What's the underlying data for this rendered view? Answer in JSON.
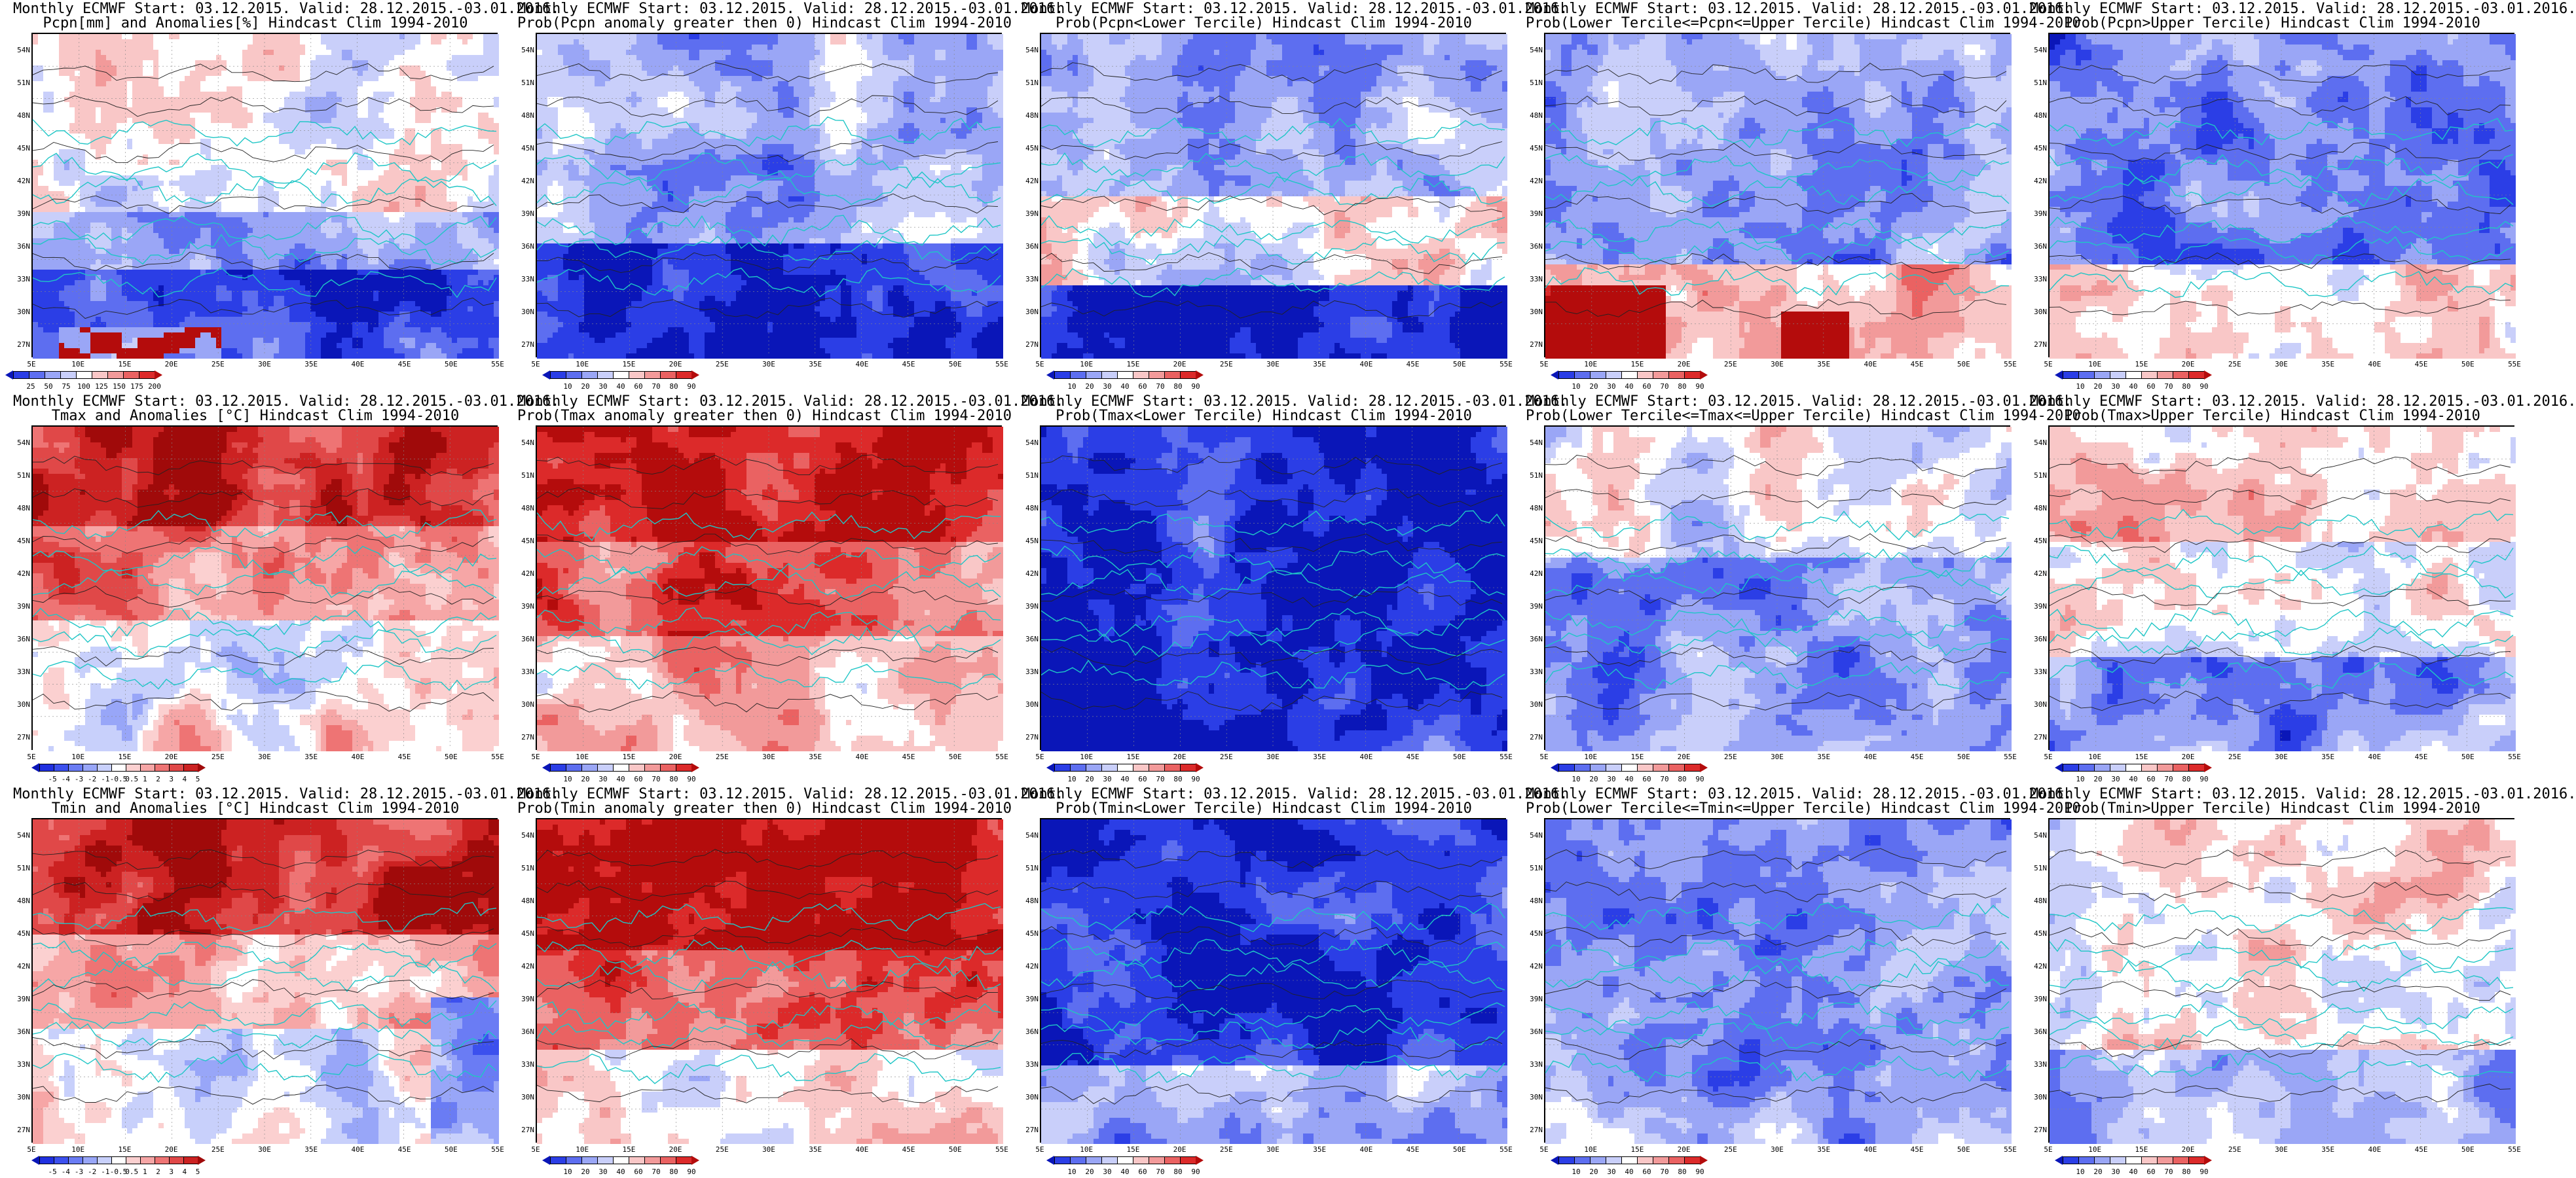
{
  "common": {
    "title_line1": "Monthly ECMWF Start: 03.12.2015. Valid: 28.12.2015.-03.01.2016.",
    "lat_labels": [
      "54N",
      "51N",
      "48N",
      "45N",
      "42N",
      "39N",
      "36N",
      "33N",
      "30N",
      "27N"
    ],
    "lon_labels": [
      "5E",
      "10E",
      "15E",
      "20E",
      "25E",
      "30E",
      "35E",
      "40E",
      "45E",
      "50E",
      "55E"
    ]
  },
  "scales": {
    "prob": [
      "10",
      "20",
      "30",
      "40",
      "60",
      "70",
      "80",
      "90"
    ],
    "pcpn": [
      "25",
      "50",
      "75",
      "100",
      "125",
      "150",
      "175",
      "200"
    ],
    "temp": [
      "-5",
      "-4",
      "-3",
      "-2",
      "-1",
      "-0.5",
      "0.5",
      "1",
      "2",
      "3",
      "4",
      "5"
    ],
    "prob_colors": [
      "#0a16b8",
      "#2b3ee6",
      "#5d6ef0",
      "#9aa6f6",
      "#c9cffa",
      "#ffffff",
      "#f9c7c7",
      "#f29a9a",
      "#ea6262",
      "#dc2a2a",
      "#b40c0c"
    ],
    "temp_colors": [
      "#0a16b8",
      "#2030e0",
      "#3c50ee",
      "#6a7cf4",
      "#98a6f8",
      "#c8d0fb",
      "#ffffff",
      "#fbd0d0",
      "#f6a6a6",
      "#ee7474",
      "#e04848",
      "#cc2222",
      "#a00a0a"
    ]
  },
  "panels": [
    {
      "title2": "Pcpn[mm] and Anomalies[%] Hindcast Clim 1994-2010",
      "scale": "pcpn",
      "field": "pcpn",
      "cbar_offset": "8"
    },
    {
      "title2": "Prob(Pcpn anomaly greater then 0) Hindcast Clim 1994-2010",
      "scale": "prob",
      "field": "pcpn_prob",
      "cbar_offset": "58"
    },
    {
      "title2": "Prob(Pcpn<Lower Tercile) Hindcast Clim 1994-2010",
      "scale": "prob",
      "field": "pcpn_low",
      "cbar_offset": "58"
    },
    {
      "title2": "Prob(Lower Tercile<=Pcpn<=Upper Tercile) Hindcast Clim 1994-2010",
      "scale": "prob",
      "field": "pcpn_mid",
      "cbar_offset": "58"
    },
    {
      "title2": "Prob(Pcpn>Upper Tercile) Hindcast Clim 1994-2010",
      "scale": "prob",
      "field": "pcpn_up",
      "cbar_offset": "58"
    },
    {
      "title2": "Tmax and Anomalies [°C] Hindcast Clim 1994-2010",
      "scale": "temp",
      "field": "tmax",
      "cbar_offset": "8"
    },
    {
      "title2": "Prob(Tmax anomaly greater then 0) Hindcast Clim 1994-2010",
      "scale": "prob",
      "field": "tmax_prob",
      "cbar_offset": "58"
    },
    {
      "title2": "Prob(Tmax<Lower Tercile) Hindcast Clim 1994-2010",
      "scale": "prob",
      "field": "tmax_low",
      "cbar_offset": "58"
    },
    {
      "title2": "Prob(Lower Tercile<=Tmax<=Upper Tercile) Hindcast Clim 1994-2010",
      "scale": "prob",
      "field": "tmax_mid",
      "cbar_offset": "58"
    },
    {
      "title2": "Prob(Tmax>Upper Tercile) Hindcast Clim 1994-2010",
      "scale": "prob",
      "field": "tmax_up",
      "cbar_offset": "58"
    },
    {
      "title2": "Tmin and Anomalies [°C] Hindcast Clim 1994-2010",
      "scale": "temp",
      "field": "tmin",
      "cbar_offset": "8"
    },
    {
      "title2": "Prob(Tmin anomaly greater then 0) Hindcast Clim 1994-2010",
      "scale": "prob",
      "field": "tmin_prob",
      "cbar_offset": "58"
    },
    {
      "title2": "Prob(Tmin<Lower Tercile) Hindcast Clim 1994-2010",
      "scale": "prob",
      "field": "tmin_low",
      "cbar_offset": "58"
    },
    {
      "title2": "Prob(Lower Tercile<=Tmin<=Upper Tercile) Hindcast Clim 1994-2010",
      "scale": "prob",
      "field": "tmin_mid",
      "cbar_offset": "58"
    },
    {
      "title2": "Prob(Tmin>Upper Tercile) Hindcast Clim 1994-2010",
      "scale": "prob",
      "field": "tmin_up",
      "cbar_offset": "58"
    }
  ]
}
